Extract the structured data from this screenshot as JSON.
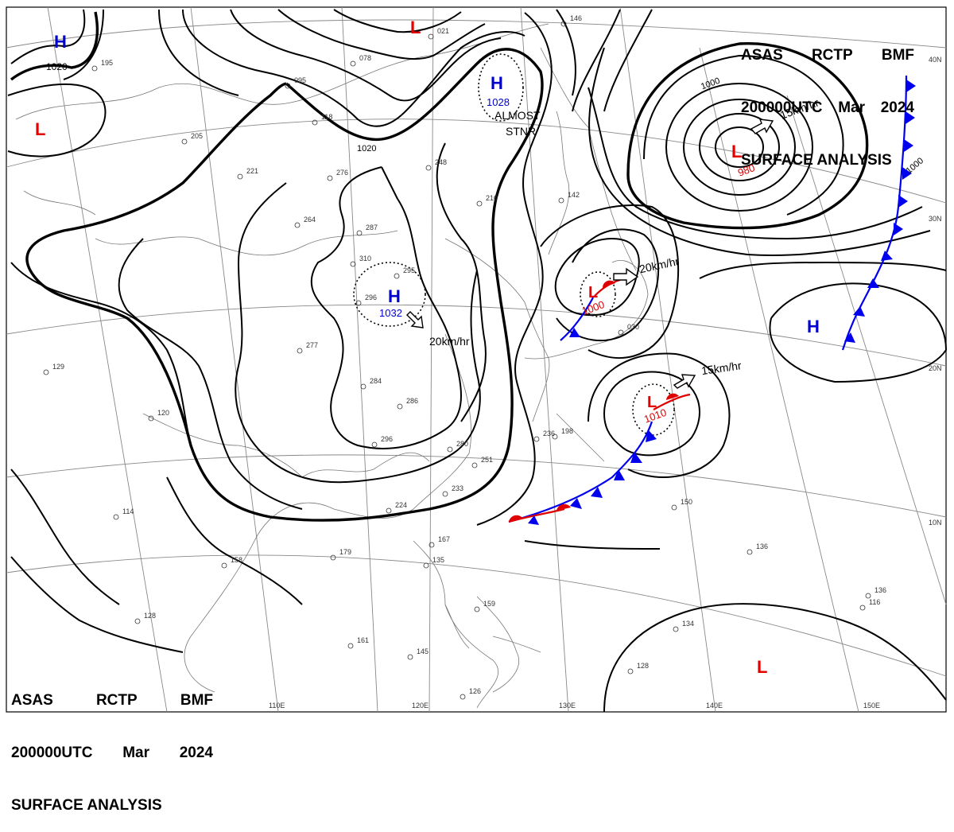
{
  "header": {
    "line1": [
      "ASAS",
      "RCTP",
      "BMF"
    ],
    "line2": [
      "200000UTC",
      "Mar",
      "2024"
    ],
    "line3": "SURFACE ANALYSIS"
  },
  "colors": {
    "low": "#e00000",
    "high": "#0000cc",
    "cold_front": "#0000ee",
    "warm_front": "#e00000",
    "isobar": "#000000",
    "grid": "#888888"
  },
  "pressure_systems": [
    {
      "type": "H",
      "value": "1020"
    },
    {
      "type": "L",
      "value": ""
    },
    {
      "type": "L",
      "value": ""
    },
    {
      "type": "H",
      "value": "1028"
    },
    {
      "type": "L",
      "value": "980"
    },
    {
      "type": "H",
      "value": "1032"
    },
    {
      "type": "L",
      "value": "1000"
    },
    {
      "type": "H",
      "value": ""
    },
    {
      "type": "L",
      "value": "1010"
    },
    {
      "type": "L",
      "value": ""
    }
  ],
  "motion_labels": [
    "15km/hr",
    "20km/hr",
    "20km/hr",
    "15km/hr"
  ],
  "annotations": [
    "ALMOST",
    "STNR"
  ],
  "isobar_labels": [
    "1020",
    "1000",
    "1000"
  ],
  "lat_labels": [
    "40N",
    "30N",
    "20N",
    "10N"
  ],
  "lon_labels": [
    "110E",
    "120E",
    "130E",
    "140E",
    "150E"
  ],
  "station_plots": [
    "195",
    "078",
    "095",
    "118",
    "021",
    "146",
    "205",
    "221",
    "276",
    "248",
    "210",
    "142",
    "264",
    "287",
    "310",
    "295",
    "296",
    "277",
    "284",
    "286",
    "296",
    "280",
    "251",
    "233",
    "224",
    "236",
    "198",
    "030",
    "129",
    "120",
    "114",
    "158",
    "179",
    "128",
    "161",
    "145",
    "135",
    "167",
    "159",
    "150",
    "136",
    "136",
    "116",
    "134",
    "128",
    "126"
  ]
}
